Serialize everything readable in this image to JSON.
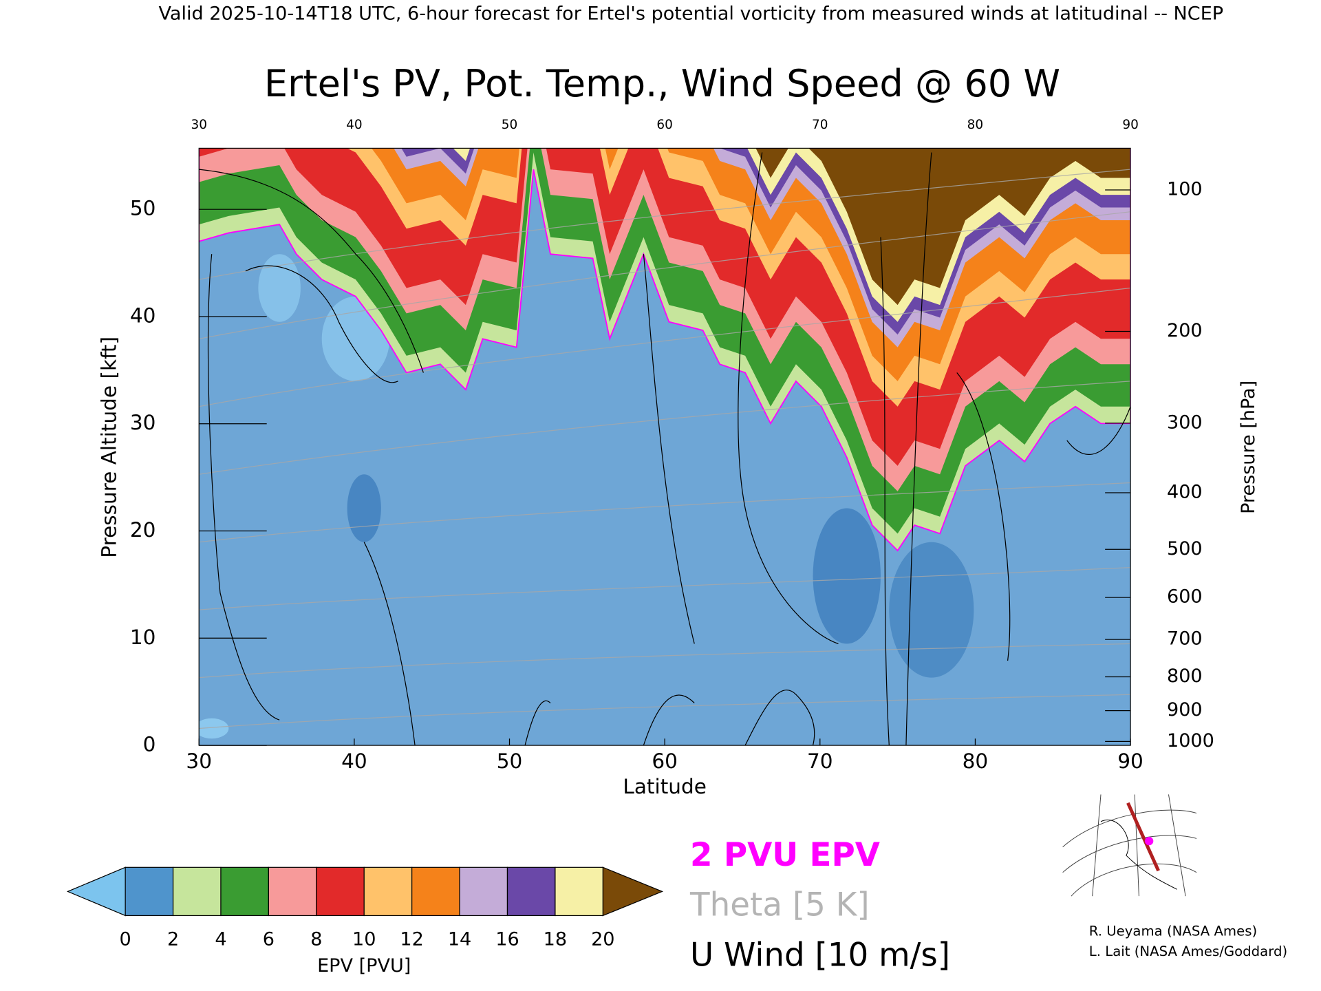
{
  "header": {
    "text": "Valid 2025-10-14T18 UTC, 6-hour forecast for Ertel's potential vorticity from measured winds at latitudinal -- NCEP"
  },
  "chart_data": {
    "type": "cross-section",
    "title": "Ertel's PV, Pot. Temp., Wind Speed @ 60 W",
    "x_label": "Latitude",
    "y_label": "Pressure Altitude [kft]",
    "y2_label": "Pressure [hPa]",
    "xlim": [
      30,
      90
    ],
    "xticks": [
      30,
      40,
      50,
      60,
      70,
      80,
      90
    ],
    "ylim": [
      0,
      55.7
    ],
    "yticks": [
      0,
      10,
      20,
      30,
      40,
      50
    ],
    "y2scale": "pressure",
    "y2ticks": [
      100,
      200,
      300,
      400,
      500,
      600,
      700,
      800,
      900,
      1000
    ],
    "colorbar": {
      "label": "EPV [PVU]",
      "levels": [
        0,
        2,
        4,
        6,
        8,
        10,
        12,
        14,
        16,
        18,
        20
      ],
      "colors": [
        "#4f94cc",
        "#c6e59c",
        "#3a9c32",
        "#f79a9a",
        "#e22a2a",
        "#ffc26a",
        "#f5821a",
        "#c4acd8",
        "#6a48a8",
        "#f6f0a6"
      ],
      "under_color": "#7cc4ee",
      "over_color": "#7a4a08"
    },
    "legend": [
      {
        "name": "2 PVU EPV",
        "color": "#ff00ff"
      },
      {
        "name": "Theta [5 K]",
        "color": "#b4b4b4"
      },
      {
        "name": "U Wind [10 m/s]",
        "color": "#000000"
      }
    ]
  },
  "credits": [
    "R. Ueyama (NASA Ames)",
    "L. Lait (NASA Ames/Goddard)"
  ]
}
